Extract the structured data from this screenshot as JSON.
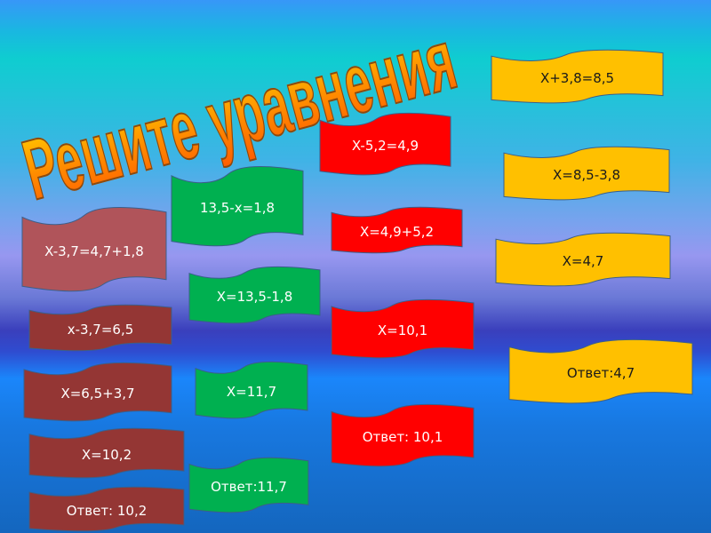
{
  "title": "Решите уравнения",
  "colors": {
    "rose": "#b0545a",
    "maroon": "#943634",
    "green": "#00b050",
    "red": "#ff0000",
    "yellow": "#ffc000"
  },
  "columns": [
    {
      "color": "maroon",
      "items": [
        "X-3,7=4,7+1,8",
        "x-3,7=6,5",
        "X=6,5+3,7",
        "X=10,2",
        "Ответ: 10,2"
      ]
    },
    {
      "color": "green",
      "items": [
        "13,5-x=1,8",
        "X=13,5-1,8",
        "X=11,7",
        "Ответ:11,7"
      ]
    },
    {
      "color": "red",
      "items": [
        "X-5,2=4,9",
        "X=4,9+5,2",
        "X=10,1",
        "Ответ: 10,1"
      ]
    },
    {
      "color": "yellow",
      "items": [
        "X+3,8=8,5",
        "X=8,5-3,8",
        "X=4,7",
        "Ответ:4,7"
      ]
    }
  ]
}
